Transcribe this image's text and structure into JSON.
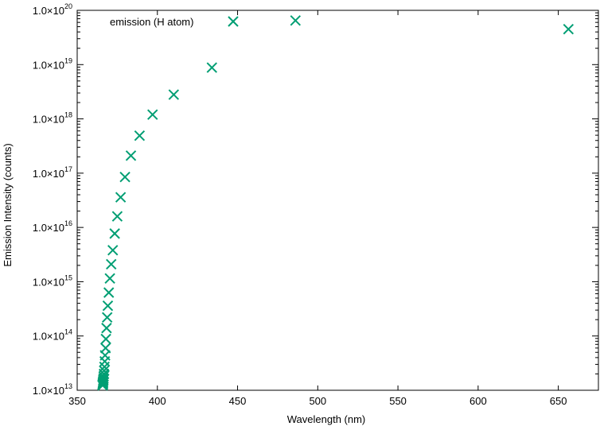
{
  "chart_data": {
    "type": "scatter",
    "title": "",
    "xlabel": "Wavelength (nm)",
    "ylabel": "Emission Intensity (counts)",
    "xlim": [
      350,
      675
    ],
    "ylim": [
      10000000000000.0,
      1e+20
    ],
    "yscale": "log",
    "grid": false,
    "legend_position": "top-left",
    "marker": "x",
    "x_ticks": [
      350,
      400,
      450,
      500,
      550,
      600,
      650
    ],
    "x_tick_labels": [
      "350",
      "400",
      "450",
      "500",
      "550",
      "600",
      "650"
    ],
    "y_ticks": [
      10000000000000.0,
      100000000000000.0,
      1000000000000000.0,
      1e+16,
      1e+17,
      1e+18,
      1e+19,
      1e+20
    ],
    "y_tick_labels": [
      {
        "mantissa": "1.0×10",
        "exponent": "13"
      },
      {
        "mantissa": "1.0×10",
        "exponent": "14"
      },
      {
        "mantissa": "1.0×10",
        "exponent": "15"
      },
      {
        "mantissa": "1.0×10",
        "exponent": "16"
      },
      {
        "mantissa": "1.0×10",
        "exponent": "17"
      },
      {
        "mantissa": "1.0×10",
        "exponent": "18"
      },
      {
        "mantissa": "1.0×10",
        "exponent": "19"
      },
      {
        "mantissa": "1.0×10",
        "exponent": "20"
      }
    ],
    "series": [
      {
        "name": "emission (H atom)",
        "color": "#009e73",
        "x": [
          656.3,
          486.1,
          434.0,
          410.2,
          397.0,
          388.9,
          383.5,
          379.8,
          377.1,
          375.0,
          373.4,
          372.2,
          371.2,
          370.4,
          369.7,
          369.1,
          368.7,
          368.3,
          367.9,
          367.7,
          367.4,
          367.2,
          367.0,
          366.8,
          366.7,
          366.5,
          366.4,
          366.3,
          366.2,
          366.1,
          366.05,
          366.0,
          365.95,
          365.9,
          365.86
        ],
        "y": [
          4.5e+19,
          6.5e+19,
          8.8e+18,
          2.8e+18,
          1.2e+18,
          4.9e+17,
          2.1e+17,
          8.5e+16,
          3.6e+16,
          1.6e+16,
          7700000000000000.0,
          3800000000000000.0,
          2100000000000000.0,
          1150000000000000.0,
          630000000000000.0,
          360000000000000.0,
          220000000000000.0,
          140000000000000.0,
          88000000000000.0,
          60000000000000.0,
          44000000000000.0,
          34000000000000.0,
          27000000000000.0,
          23000000000000.0,
          20000000000000.0,
          18000000000000.0,
          16500000000000.0,
          15500000000000.0,
          14700000000000.0,
          14000000000000.0,
          13500000000000.0,
          13100000000000.0,
          12800000000000.0,
          12500000000000.0,
          12300000000000.0
        ]
      }
    ]
  }
}
